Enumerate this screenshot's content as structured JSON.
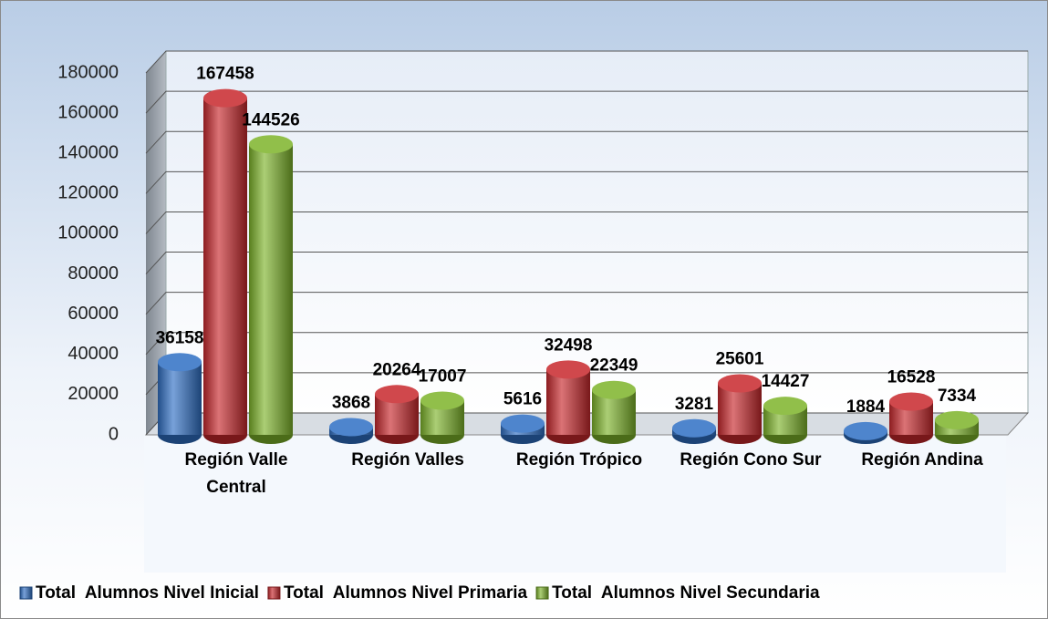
{
  "chart_data": {
    "type": "bar",
    "categories": [
      "Región Valle Central",
      "Región Valles",
      "Región Trópico",
      "Región Cono Sur",
      "Región Andina"
    ],
    "series": [
      {
        "name": "Total  Alumnos Nivel Inicial",
        "color": "#2f6fc4",
        "values": [
          36158,
          3868,
          5616,
          3281,
          1884
        ]
      },
      {
        "name": "Total  Alumnos Nivel Primaria",
        "color": "#c8282c",
        "values": [
          167458,
          20264,
          32498,
          25601,
          16528
        ]
      },
      {
        "name": "Total  Alumnos Nivel Secundaria",
        "color": "#7db42a",
        "values": [
          144526,
          17007,
          22349,
          14427,
          7334
        ]
      }
    ],
    "ylim": [
      0,
      180000
    ],
    "yticks": [
      0,
      20000,
      40000,
      60000,
      80000,
      100000,
      120000,
      140000,
      160000,
      180000
    ],
    "grid": true,
    "legend": "bottom"
  }
}
